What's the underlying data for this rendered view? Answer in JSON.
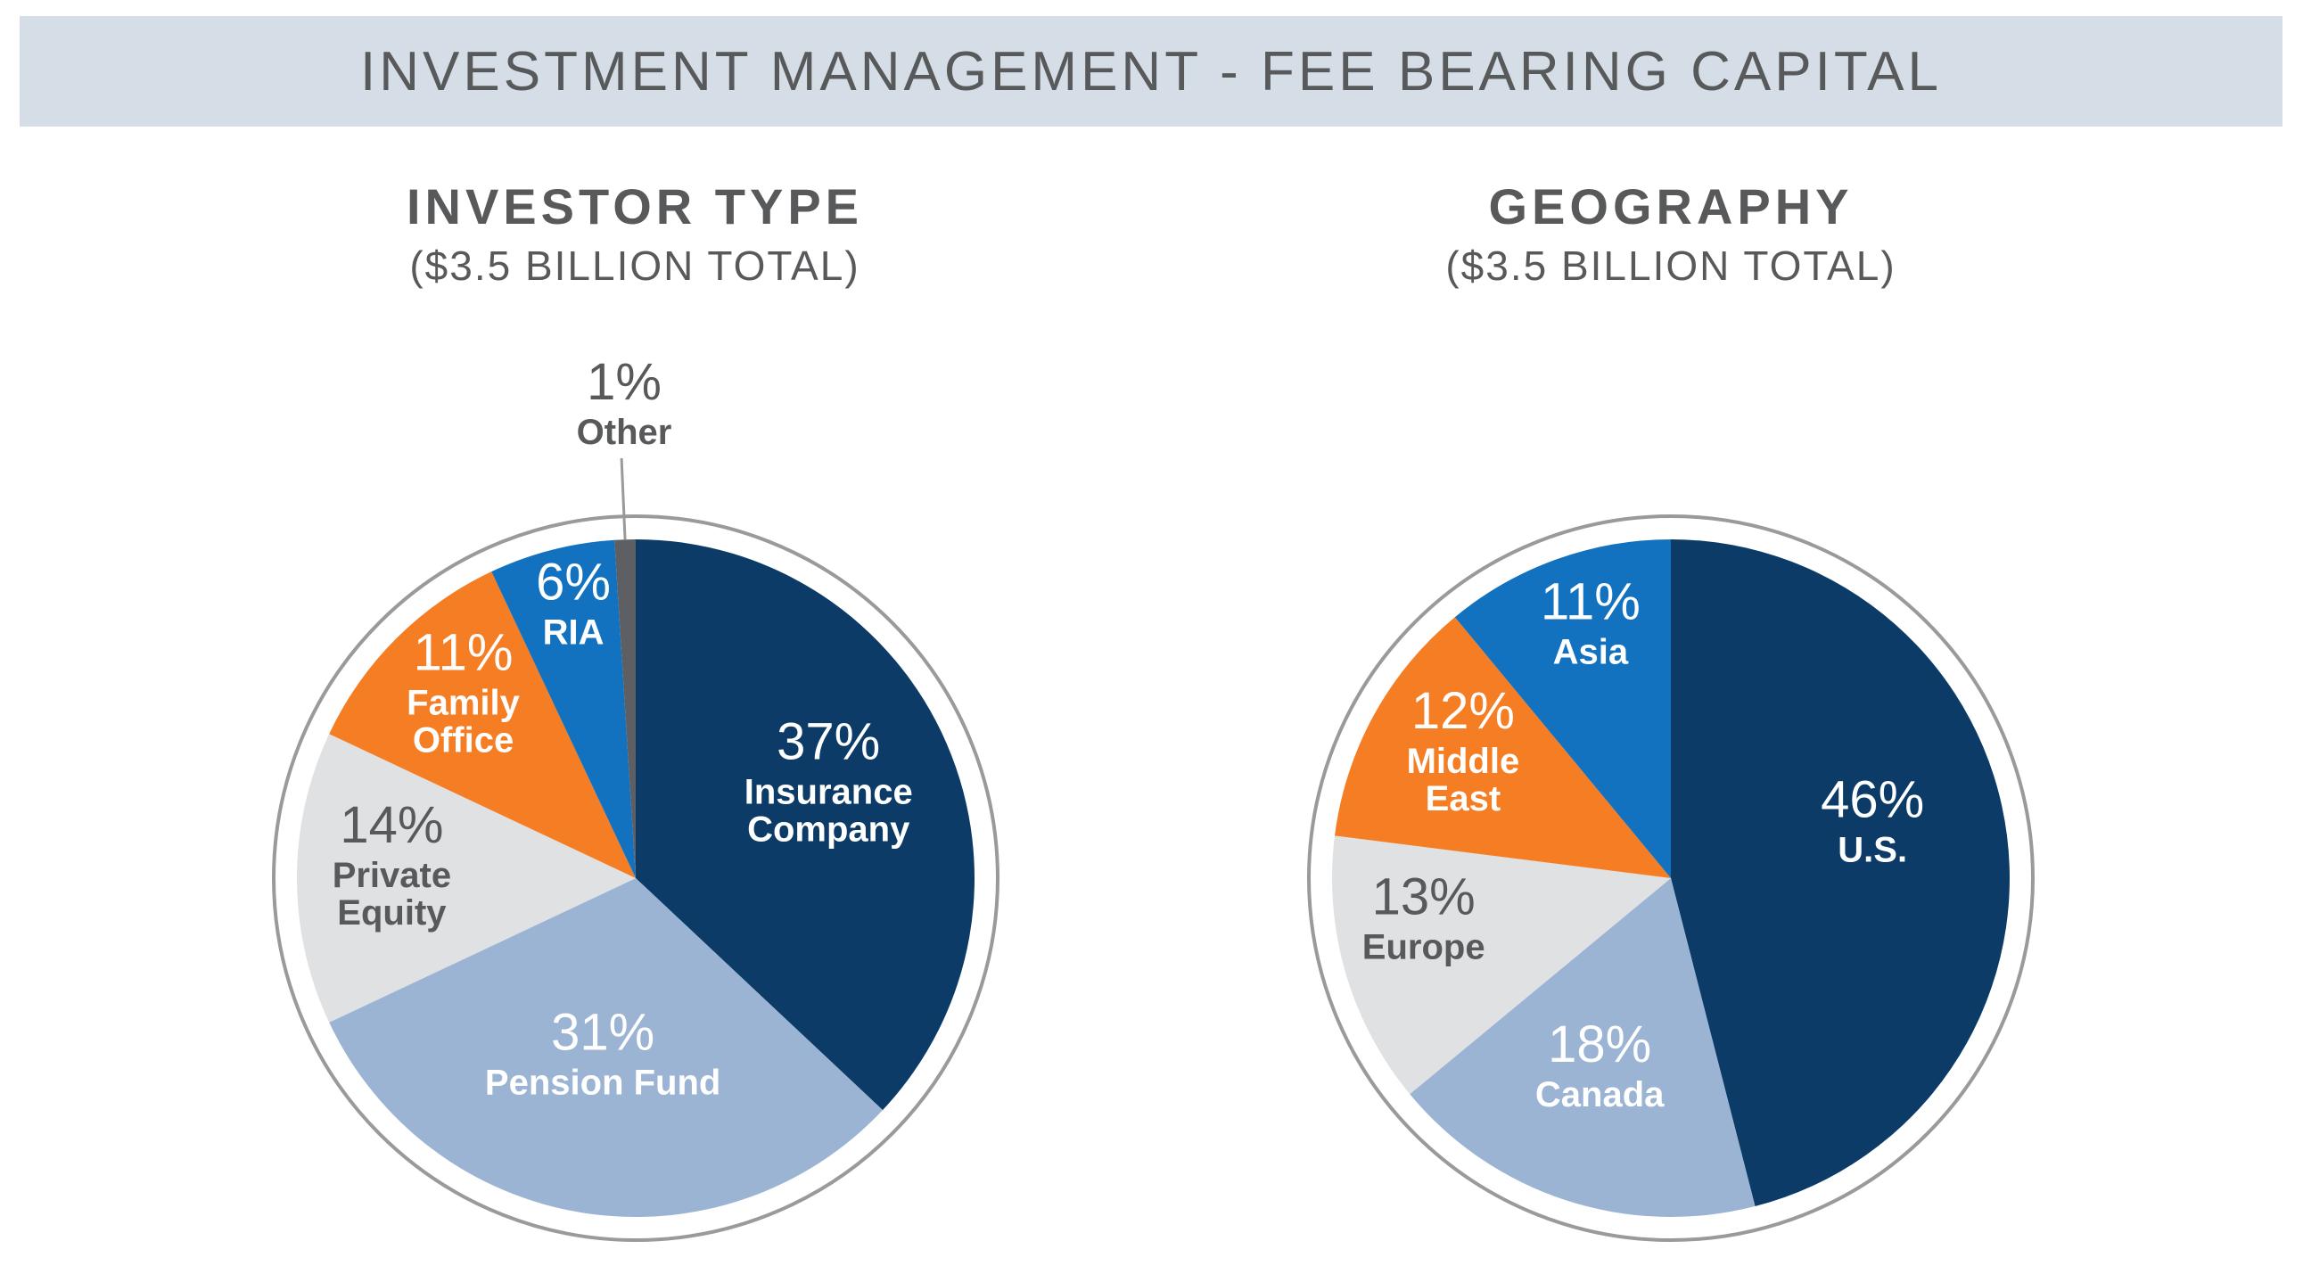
{
  "header": {
    "title": "INVESTMENT MANAGEMENT - FEE BEARING CAPITAL"
  },
  "colors": {
    "navy": "#0b3b66",
    "lightblue": "#9bb4d3",
    "lightgray": "#e0e1e3",
    "orange": "#f57d23",
    "blue": "#1272bf",
    "darkgray": "#5d5f62",
    "ring": "#9a9a9a",
    "text": "#58595b"
  },
  "chart_data": [
    {
      "type": "pie",
      "title": "INVESTOR TYPE",
      "subtitle": "($3.5 BILLION TOTAL)",
      "slices": [
        {
          "label": "Insurance Company",
          "label_lines": [
            "Insurance",
            "Company"
          ],
          "value": 37,
          "value_label": "37%",
          "color": "navy",
          "text": "light"
        },
        {
          "label": "Pension Fund",
          "label_lines": [
            "Pension Fund"
          ],
          "value": 31,
          "value_label": "31%",
          "color": "lightblue",
          "text": "light"
        },
        {
          "label": "Private Equity",
          "label_lines": [
            "Private",
            "Equity"
          ],
          "value": 14,
          "value_label": "14%",
          "color": "lightgray",
          "text": "dark"
        },
        {
          "label": "Family Office",
          "label_lines": [
            "Family",
            "Office"
          ],
          "value": 11,
          "value_label": "11%",
          "color": "orange",
          "text": "light"
        },
        {
          "label": "RIA",
          "label_lines": [
            "RIA"
          ],
          "value": 6,
          "value_label": "6%",
          "color": "blue",
          "text": "light"
        },
        {
          "label": "Other",
          "label_lines": [
            "Other"
          ],
          "value": 1,
          "value_label": "1%",
          "color": "darkgray",
          "text": "dark",
          "outside": true
        }
      ]
    },
    {
      "type": "pie",
      "title": "GEOGRAPHY",
      "subtitle": "($3.5 BILLION TOTAL)",
      "slices": [
        {
          "label": "U.S.",
          "label_lines": [
            "U.S."
          ],
          "value": 46,
          "value_label": "46%",
          "color": "navy",
          "text": "light"
        },
        {
          "label": "Canada",
          "label_lines": [
            "Canada"
          ],
          "value": 18,
          "value_label": "18%",
          "color": "lightblue",
          "text": "light"
        },
        {
          "label": "Europe",
          "label_lines": [
            "Europe"
          ],
          "value": 13,
          "value_label": "13%",
          "color": "lightgray",
          "text": "dark"
        },
        {
          "label": "Middle East",
          "label_lines": [
            "Middle",
            "East"
          ],
          "value": 12,
          "value_label": "12%",
          "color": "orange",
          "text": "light"
        },
        {
          "label": "Asia",
          "label_lines": [
            "Asia"
          ],
          "value": 11,
          "value_label": "11%",
          "color": "blue",
          "text": "light"
        }
      ]
    }
  ]
}
